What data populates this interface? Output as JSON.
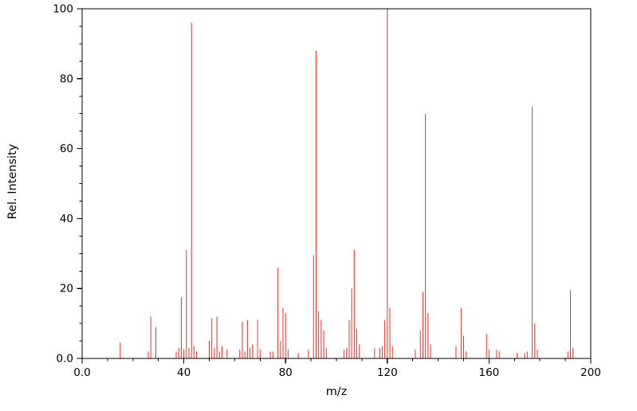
{
  "figure": {
    "background": "#ffffff",
    "axis_color": "#000000",
    "tick_label_color": "#000000"
  },
  "chart_data": {
    "type": "stick",
    "subtype": "mass-spectrum",
    "title": "",
    "xlabel": "m/z",
    "ylabel": "Rel. Intensity",
    "xlim": [
      0,
      200
    ],
    "ylim": [
      0,
      100
    ],
    "grid": false,
    "legend": false,
    "frame_box": true,
    "x_major_ticks": [
      0,
      40,
      80,
      120,
      160,
      200
    ],
    "x_tick_labels": [
      "0.0",
      "40",
      "80",
      "120",
      "160",
      "200"
    ],
    "x_minor_step": 10,
    "y_major_ticks": [
      0,
      20,
      40,
      60,
      80,
      100
    ],
    "y_tick_labels": [
      "0.0",
      "20",
      "40",
      "60",
      "80",
      "100"
    ],
    "y_minor_step": 5,
    "stick_color": "#f62d20",
    "peaks": [
      [
        15,
        4.5
      ],
      [
        26,
        2
      ],
      [
        27,
        12
      ],
      [
        29,
        9
      ],
      [
        37,
        2
      ],
      [
        38,
        3
      ],
      [
        39,
        17.5
      ],
      [
        40,
        2.5
      ],
      [
        41,
        31
      ],
      [
        42,
        3
      ],
      [
        43,
        96
      ],
      [
        44,
        3.5
      ],
      [
        45,
        2
      ],
      [
        50,
        5
      ],
      [
        51,
        11.5
      ],
      [
        52,
        3
      ],
      [
        53,
        12
      ],
      [
        54,
        2
      ],
      [
        55,
        3.5
      ],
      [
        57,
        2.5
      ],
      [
        62,
        2.5
      ],
      [
        63,
        10.5
      ],
      [
        64,
        2
      ],
      [
        65,
        11
      ],
      [
        66,
        3
      ],
      [
        67,
        4
      ],
      [
        69,
        11
      ],
      [
        70,
        2.5
      ],
      [
        74,
        2
      ],
      [
        75,
        2
      ],
      [
        77,
        26
      ],
      [
        78,
        5
      ],
      [
        79,
        14.5
      ],
      [
        80,
        13
      ],
      [
        81,
        2.5
      ],
      [
        85,
        1.5
      ],
      [
        89,
        2.5
      ],
      [
        91,
        29.5
      ],
      [
        92,
        88
      ],
      [
        93,
        13.5
      ],
      [
        94,
        11
      ],
      [
        95,
        8
      ],
      [
        96,
        3
      ],
      [
        103,
        2.5
      ],
      [
        104,
        3
      ],
      [
        105,
        11
      ],
      [
        106,
        20
      ],
      [
        107,
        31
      ],
      [
        108,
        8.5
      ],
      [
        109,
        4
      ],
      [
        115,
        3
      ],
      [
        117,
        3
      ],
      [
        118,
        3.5
      ],
      [
        119,
        11
      ],
      [
        120,
        100
      ],
      [
        121,
        14.5
      ],
      [
        122,
        3.5
      ],
      [
        131,
        2.5
      ],
      [
        133,
        8
      ],
      [
        134,
        19
      ],
      [
        135,
        70
      ],
      [
        136,
        13
      ],
      [
        137,
        4
      ],
      [
        147,
        3.5
      ],
      [
        149,
        14.5
      ],
      [
        150,
        6.5
      ],
      [
        151,
        2
      ],
      [
        159,
        7
      ],
      [
        160,
        2.5
      ],
      [
        163,
        2.5
      ],
      [
        164,
        2
      ],
      [
        171,
        1.5
      ],
      [
        174,
        1.5
      ],
      [
        175,
        2
      ],
      [
        177,
        72
      ],
      [
        178,
        10
      ],
      [
        179,
        2.5
      ],
      [
        191,
        2
      ],
      [
        192,
        19.5
      ],
      [
        193,
        3
      ]
    ]
  }
}
